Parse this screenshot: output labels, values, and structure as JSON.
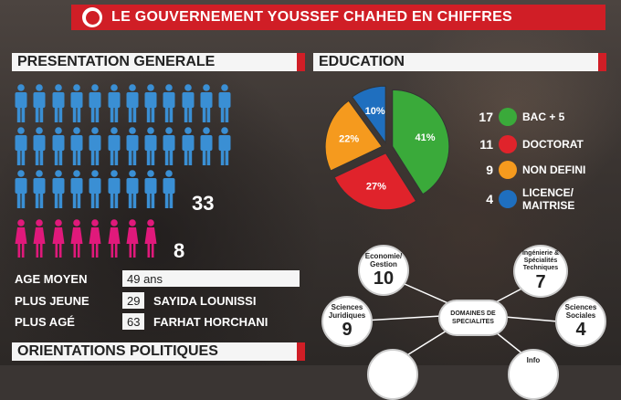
{
  "banner": {
    "title": "LE GOUVERNEMENT YOUSSEF CHAHED EN CHIFFRES"
  },
  "presentation": {
    "title": "PRESENTATION GENERALE",
    "men_count": "33",
    "women_count": "8",
    "men_color": "#3a8fd4",
    "women_color": "#e0197b",
    "stats": [
      {
        "label": "AGE MOYEN",
        "value": "49 ans",
        "name": ""
      },
      {
        "label": "PLUS JEUNE",
        "value": "29",
        "name": "SAYIDA LOUNISSI"
      },
      {
        "label": "PLUS AGÉ",
        "value": "63",
        "name": "FARHAT HORCHANI"
      }
    ]
  },
  "orientations": {
    "title": "ORIENTATIONS POLITIQUES"
  },
  "education": {
    "title": "EDUCATION",
    "legend": [
      {
        "count": "17",
        "label": "BAC + 5",
        "color": "#3aaa3a"
      },
      {
        "count": "11",
        "label": "DOCTORAT",
        "color": "#e0232b"
      },
      {
        "count": "9",
        "label": "NON DEFINI",
        "color": "#f59a1e"
      },
      {
        "count": "4",
        "label": "LICENCE/ MAITRISE",
        "color": "#1f6fbf"
      }
    ]
  },
  "chart_data": {
    "type": "pie",
    "title": "EDUCATION",
    "categories": [
      "BAC + 5",
      "DOCTORAT",
      "NON DEFINI",
      "LICENCE/ MAITRISE"
    ],
    "values": [
      41,
      27,
      22,
      10
    ],
    "labels": [
      "41%",
      "27%",
      "22%",
      "10%"
    ],
    "colors": [
      "#3aaa3a",
      "#e0232b",
      "#f59a1e",
      "#1f6fbf"
    ]
  },
  "domaines": {
    "center": "DOMAINES DE SPECIALITES",
    "nodes": [
      {
        "label": "Economie/ Gestion",
        "count": "10"
      },
      {
        "label": "Ingénierie & Spécialités Techniques",
        "count": "7"
      },
      {
        "label": "Sciences Juridiques",
        "count": "9"
      },
      {
        "label": "Sciences Sociales",
        "count": "4"
      },
      {
        "label": "",
        "count": ""
      },
      {
        "label": "Info",
        "count": ""
      }
    ]
  }
}
